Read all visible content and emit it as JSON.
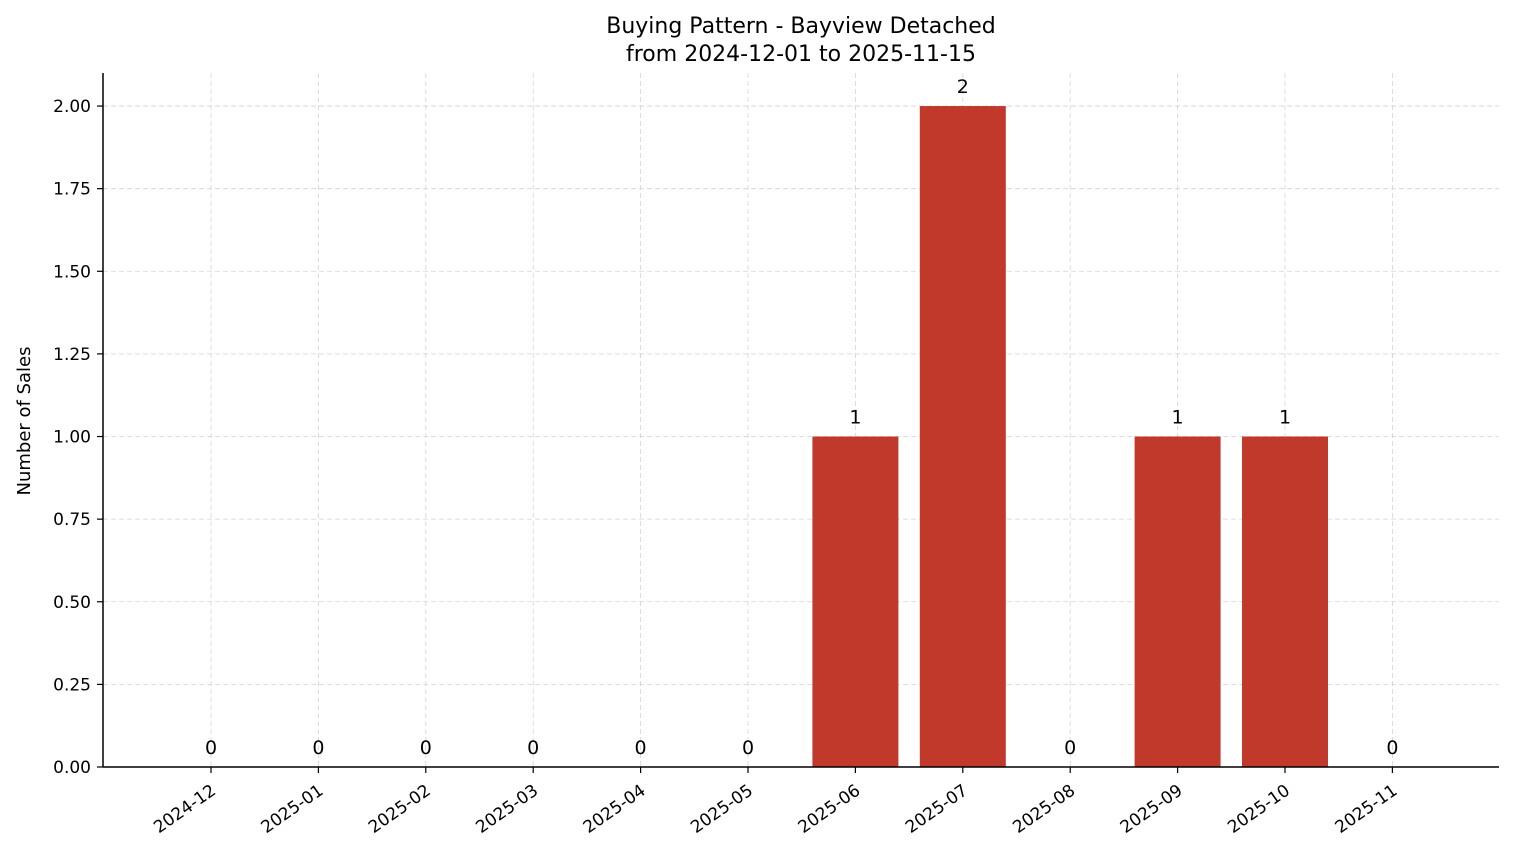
{
  "chart_data": {
    "type": "bar",
    "title": "Buying Pattern - Bayview Detached",
    "subtitle": "from 2024-12-01 to 2025-11-15",
    "xlabel": "",
    "ylabel": "Number of Sales",
    "categories": [
      "2024-12",
      "2025-01",
      "2025-02",
      "2025-03",
      "2025-04",
      "2025-05",
      "2025-06",
      "2025-07",
      "2025-08",
      "2025-09",
      "2025-10",
      "2025-11"
    ],
    "values": [
      0,
      0,
      0,
      0,
      0,
      0,
      1,
      2,
      0,
      1,
      1,
      0
    ],
    "data_labels": [
      "0",
      "0",
      "0",
      "0",
      "0",
      "0",
      "1",
      "2",
      "0",
      "1",
      "1",
      "0"
    ],
    "ylim": [
      0,
      2.1
    ],
    "yticks": [
      "0.00",
      "0.25",
      "0.50",
      "0.75",
      "1.00",
      "1.25",
      "1.50",
      "1.75",
      "2.00"
    ],
    "grid": true,
    "bar_color": "#c0392b"
  }
}
